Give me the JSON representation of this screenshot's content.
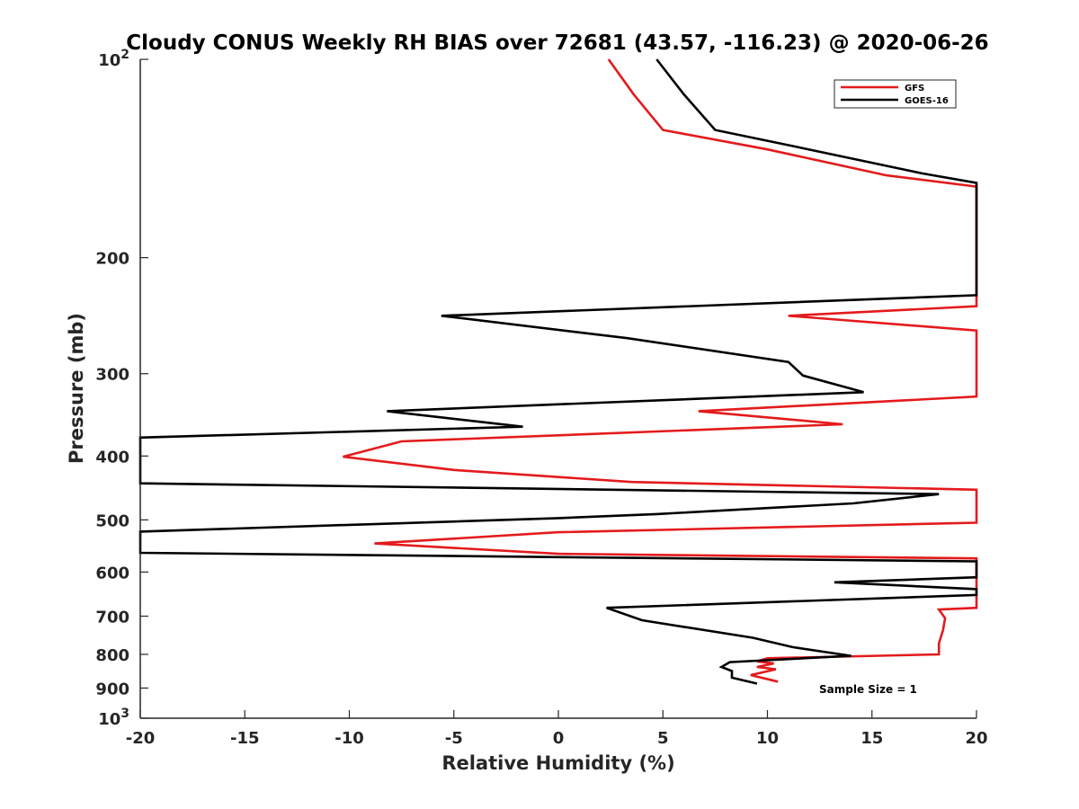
{
  "chart_data": {
    "type": "line",
    "title": "Cloudy CONUS Weekly RH BIAS over 72681 (43.57, -116.23) @ 2020-06-26",
    "xlabel": "Relative Humidity (%)",
    "ylabel": "Pressure (mb)",
    "xlim": [
      -20,
      20
    ],
    "ylim": [
      100,
      1000
    ],
    "y_scale": "log",
    "y_reversed": true,
    "grid": false,
    "legend_position": "top-right",
    "x_ticks": [
      {
        "value": -20,
        "label": "-20"
      },
      {
        "value": -15,
        "label": "-15"
      },
      {
        "value": -10,
        "label": "-10"
      },
      {
        "value": -5,
        "label": "-5"
      },
      {
        "value": 0,
        "label": "0"
      },
      {
        "value": 5,
        "label": "5"
      },
      {
        "value": 10,
        "label": "10"
      },
      {
        "value": 15,
        "label": "15"
      },
      {
        "value": 20,
        "label": "20"
      }
    ],
    "y_ticks": [
      {
        "value": 100,
        "base": "10",
        "exp": "2"
      },
      {
        "value": 200,
        "base": "200",
        "exp": ""
      },
      {
        "value": 300,
        "base": "300",
        "exp": ""
      },
      {
        "value": 400,
        "base": "400",
        "exp": ""
      },
      {
        "value": 500,
        "base": "500",
        "exp": ""
      },
      {
        "value": 600,
        "base": "600",
        "exp": ""
      },
      {
        "value": 700,
        "base": "700",
        "exp": ""
      },
      {
        "value": 800,
        "base": "800",
        "exp": ""
      },
      {
        "value": 900,
        "base": "900",
        "exp": ""
      },
      {
        "value": 1000,
        "base": "10",
        "exp": "3"
      }
    ],
    "series": [
      {
        "name": "GFS",
        "color": "#e41a1c",
        "points": [
          [
            2.4,
            100
          ],
          [
            3.6,
            113
          ],
          [
            5.0,
            128
          ],
          [
            10.0,
            137
          ],
          [
            15.7,
            150
          ],
          [
            20.0,
            156
          ],
          [
            20.0,
            237
          ],
          [
            11.0,
            245
          ],
          [
            20.0,
            258
          ],
          [
            20.0,
            325
          ],
          [
            6.7,
            342
          ],
          [
            13.6,
            358
          ],
          [
            -7.5,
            380
          ],
          [
            -10.3,
            401
          ],
          [
            -5.0,
            420
          ],
          [
            3.5,
            438
          ],
          [
            20.0,
            450
          ],
          [
            20.0,
            505
          ],
          [
            0.0,
            522
          ],
          [
            -8.8,
            543
          ],
          [
            0.0,
            563
          ],
          [
            20.0,
            572
          ],
          [
            20.0,
            680
          ],
          [
            18.2,
            684
          ],
          [
            18.5,
            705
          ],
          [
            18.4,
            735
          ],
          [
            18.2,
            770
          ],
          [
            18.2,
            800
          ],
          [
            10.0,
            811
          ],
          [
            9.5,
            820
          ],
          [
            10.3,
            826
          ],
          [
            9.5,
            836
          ],
          [
            10.4,
            843
          ],
          [
            9.2,
            860
          ],
          [
            10.5,
            880
          ]
        ]
      },
      {
        "name": "GOES-16",
        "color": "#000000",
        "points": [
          [
            4.7,
            100
          ],
          [
            6.0,
            113
          ],
          [
            7.5,
            128
          ],
          [
            11.5,
            136
          ],
          [
            17.4,
            149
          ],
          [
            20.0,
            154
          ],
          [
            20.0,
            228
          ],
          [
            -5.6,
            245
          ],
          [
            3.3,
            265
          ],
          [
            11.0,
            288
          ],
          [
            11.7,
            302
          ],
          [
            14.6,
            320
          ],
          [
            -8.2,
            342
          ],
          [
            -1.7,
            361
          ],
          [
            -20.0,
            375
          ],
          [
            -20.0,
            440
          ],
          [
            18.2,
            457
          ],
          [
            14.1,
            472
          ],
          [
            4.7,
            490
          ],
          [
            0.0,
            497
          ],
          [
            -20.0,
            521
          ],
          [
            -20.0,
            561
          ],
          [
            20.0,
            578
          ],
          [
            20.0,
            611
          ],
          [
            13.2,
            622
          ],
          [
            20.0,
            637
          ],
          [
            20.0,
            650
          ],
          [
            2.3,
            680
          ],
          [
            4.0,
            710
          ],
          [
            9.3,
            755
          ],
          [
            11.2,
            780
          ],
          [
            14.0,
            804
          ],
          [
            8.2,
            822
          ],
          [
            7.8,
            836
          ],
          [
            8.3,
            848
          ],
          [
            8.3,
            868
          ],
          [
            9.5,
            886
          ]
        ]
      }
    ],
    "annotations": [
      "Sample Size = 1"
    ]
  }
}
